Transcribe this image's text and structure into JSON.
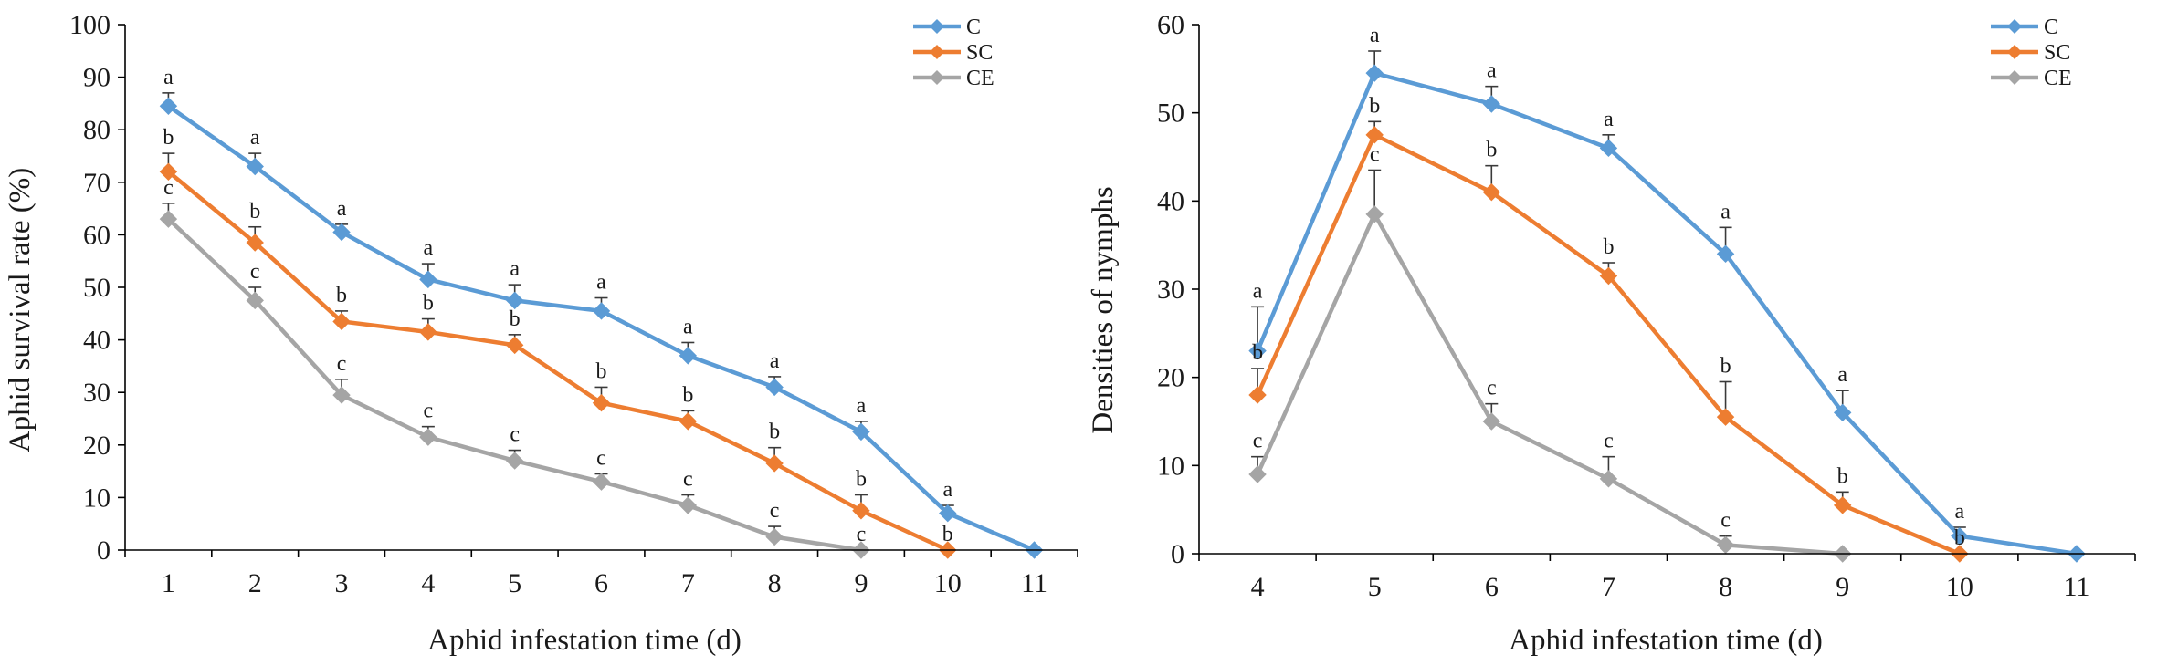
{
  "chart_data": [
    {
      "type": "line",
      "title": "",
      "xlabel": "Aphid infestation time (d)",
      "ylabel": "Aphid survival rate (%)",
      "ylim": [
        0,
        100
      ],
      "yticks": [
        0,
        10,
        20,
        30,
        40,
        50,
        60,
        70,
        80,
        90,
        100
      ],
      "categories": [
        "1",
        "2",
        "3",
        "4",
        "5",
        "6",
        "7",
        "8",
        "9",
        "10",
        "11"
      ],
      "legend_position": "top-right",
      "series": [
        {
          "name": "C",
          "color": "#5b9bd5",
          "values": [
            84.5,
            73,
            60.5,
            51.5,
            47.5,
            45.5,
            37,
            31,
            22.5,
            7,
            0
          ],
          "errors": [
            2.5,
            2.5,
            1.5,
            3,
            3,
            2.5,
            2.5,
            2,
            2,
            1.5,
            null
          ],
          "letters": [
            "a",
            "a",
            "a",
            "a",
            "a",
            "a",
            "a",
            "a",
            "a",
            "a",
            null
          ]
        },
        {
          "name": "SC",
          "color": "#ed7d31",
          "values": [
            72,
            58.5,
            43.5,
            41.5,
            39,
            28,
            24.5,
            16.5,
            7.5,
            0,
            null
          ],
          "errors": [
            3.5,
            3,
            2,
            2.5,
            2,
            3,
            2,
            3,
            3,
            null,
            null
          ],
          "letters": [
            "b",
            "b",
            "b",
            "b",
            "b",
            "b",
            "b",
            "b",
            "b",
            "b",
            null
          ]
        },
        {
          "name": "CE",
          "color": "#a5a5a5",
          "values": [
            63,
            47.5,
            29.5,
            21.5,
            17,
            13,
            8.5,
            2.5,
            0,
            null,
            null
          ],
          "errors": [
            3,
            2.5,
            3,
            2,
            2,
            1.5,
            2,
            2,
            null,
            null,
            null
          ],
          "letters": [
            "c",
            "c",
            "c",
            "c",
            "c",
            "c",
            "c",
            "c",
            "c",
            null,
            null
          ]
        }
      ]
    },
    {
      "type": "line",
      "title": "",
      "xlabel": "Aphid infestation time (d)",
      "ylabel": "Densities of nymphs",
      "ylim": [
        0,
        60
      ],
      "yticks": [
        0,
        10,
        20,
        30,
        40,
        50,
        60
      ],
      "categories": [
        "4",
        "5",
        "6",
        "7",
        "8",
        "9",
        "10",
        "11"
      ],
      "legend_position": "top-right",
      "series": [
        {
          "name": "C",
          "color": "#5b9bd5",
          "values": [
            23,
            54.5,
            51,
            46,
            34,
            16,
            2,
            0
          ],
          "errors": [
            5,
            2.5,
            2,
            1.5,
            3,
            2.5,
            1,
            null
          ],
          "letters": [
            "a",
            "a",
            "a",
            "a",
            "a",
            "a",
            "a",
            null
          ]
        },
        {
          "name": "SC",
          "color": "#ed7d31",
          "values": [
            18,
            47.5,
            41,
            31.5,
            15.5,
            5.5,
            0,
            null
          ],
          "errors": [
            3,
            1.5,
            3,
            1.5,
            4,
            1.5,
            null,
            null
          ],
          "letters": [
            "b",
            "b",
            "b",
            "b",
            "b",
            "b",
            "b",
            null
          ]
        },
        {
          "name": "CE",
          "color": "#a5a5a5",
          "values": [
            9,
            38.5,
            15,
            8.5,
            1,
            0,
            null,
            null
          ],
          "errors": [
            2,
            5,
            2,
            2.5,
            1,
            null,
            null,
            null
          ],
          "letters": [
            "c",
            "c",
            "c",
            "c",
            "c",
            null,
            null,
            null
          ]
        }
      ]
    }
  ]
}
